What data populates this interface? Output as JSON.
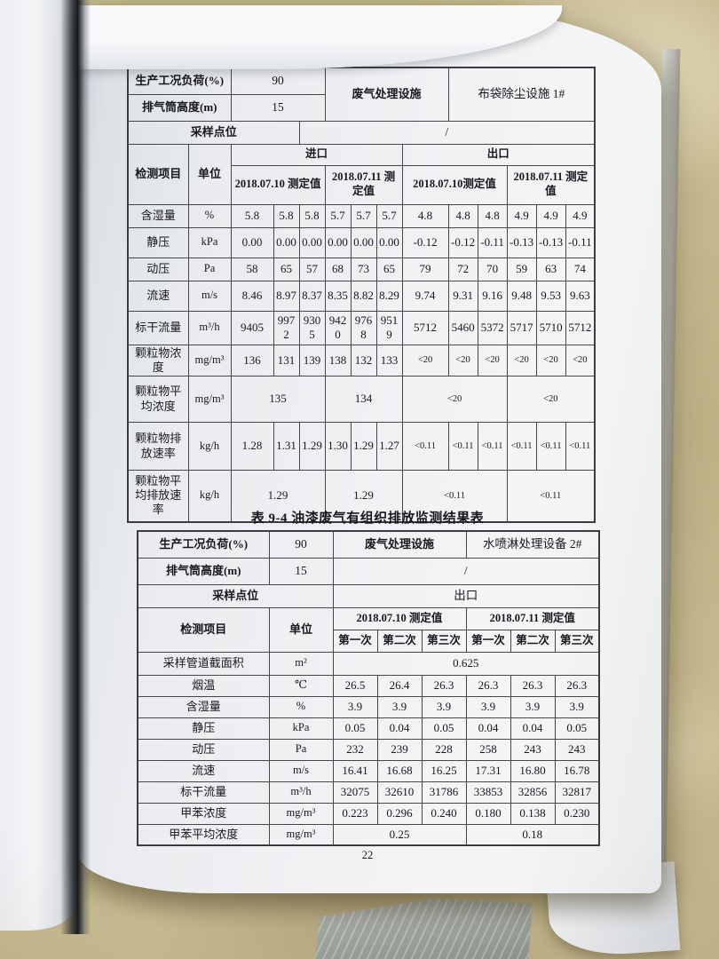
{
  "page_number": "22",
  "table1": {
    "info": {
      "load_label": "生产工况负荷(%)",
      "load_value": "90",
      "facility_label": "废气处理设施",
      "facility_value": "布袋除尘设施 1#",
      "stack_label": "排气筒高度(m)",
      "stack_value": "15",
      "sampling_label": "采样点位",
      "sampling_value": "/"
    },
    "header": {
      "item": "检测项目",
      "unit": "单位",
      "inlet": "进口",
      "outlet": "出口",
      "inlet_d1": "2018.07.10 测定值",
      "inlet_d2": "2018.07.11 测定值",
      "outlet_d1": "2018.07.10测定值",
      "outlet_d2": "2018.07.11 测定值"
    },
    "rows": [
      {
        "item": "含湿量",
        "unit": "%",
        "cells": [
          "5.8",
          "5.8",
          "5.8",
          "5.7",
          "5.7",
          "5.7",
          "4.8",
          "4.8",
          "4.8",
          "4.9",
          "4.9",
          "4.9"
        ]
      },
      {
        "item": "静压",
        "unit": "kPa",
        "cells": [
          "0.00",
          "0.00",
          "0.00",
          "0.00",
          "0.00",
          "0.00",
          "-0.12",
          "-0.12",
          "-0.11",
          "-0.13",
          "-0.13",
          "-0.11"
        ]
      },
      {
        "item": "动压",
        "unit": "Pa",
        "cells": [
          "58",
          "65",
          "57",
          "68",
          "73",
          "65",
          "79",
          "72",
          "70",
          "59",
          "63",
          "74"
        ]
      },
      {
        "item": "流速",
        "unit": "m/s",
        "cells": [
          "8.46",
          "8.97",
          "8.37",
          "8.35",
          "8.82",
          "8.29",
          "9.74",
          "9.31",
          "9.16",
          "9.48",
          "9.53",
          "9.63"
        ]
      },
      {
        "item": "标干流量",
        "unit": "m³/h",
        "cells": [
          "9405",
          "9972",
          "9305",
          "9420",
          "9768",
          "9519",
          "5712",
          "5460",
          "5372",
          "5717",
          "5710",
          "5712"
        ]
      },
      {
        "item": "颗粒物浓度",
        "unit": "mg/m³",
        "cells": [
          "136",
          "131",
          "139",
          "138",
          "132",
          "133",
          "<20",
          "<20",
          "<20",
          "<20",
          "<20",
          "<20"
        ]
      },
      {
        "item": "颗粒物平均浓度",
        "unit": "mg/m³",
        "merged": [
          "135",
          "134",
          "<20",
          "<20"
        ]
      },
      {
        "item": "颗粒物排放速率",
        "unit": "kg/h",
        "cells": [
          "1.28",
          "1.31",
          "1.29",
          "1.30",
          "1.29",
          "1.27",
          "<0.11",
          "<0.11",
          "<0.11",
          "<0.11",
          "<0.11",
          "<0.11"
        ]
      },
      {
        "item": "颗粒物平均排放速率",
        "unit": "kg/h",
        "merged": [
          "1.29",
          "1.29",
          "<0.11",
          "<0.11"
        ]
      }
    ]
  },
  "table2": {
    "title": "表 9-4  油漆废气有组织排放监测结果表",
    "info": {
      "load_label": "生产工况负荷(%)",
      "load_value": "90",
      "facility_label": "废气处理设施",
      "facility_value": "水喷淋处理设备 2#",
      "stack_label": "排气筒高度(m)",
      "stack_value": "15",
      "stack_right": "/",
      "sampling_label": "采样点位",
      "sampling_value": "出口"
    },
    "header": {
      "item": "检测项目",
      "unit": "单位",
      "d1": "2018.07.10 测定值",
      "d2": "2018.07.11 测定值",
      "runs": [
        "第一次",
        "第二次",
        "第三次",
        "第一次",
        "第二次",
        "第三次"
      ]
    },
    "rows": [
      {
        "item": "采样管道截面积",
        "unit": "m²",
        "merged": [
          "0.625"
        ]
      },
      {
        "item": "烟温",
        "unit": "℃",
        "cells": [
          "26.5",
          "26.4",
          "26.3",
          "26.3",
          "26.3",
          "26.3"
        ]
      },
      {
        "item": "含湿量",
        "unit": "%",
        "cells": [
          "3.9",
          "3.9",
          "3.9",
          "3.9",
          "3.9",
          "3.9"
        ]
      },
      {
        "item": "静压",
        "unit": "kPa",
        "cells": [
          "0.05",
          "0.04",
          "0.05",
          "0.04",
          "0.04",
          "0.05"
        ]
      },
      {
        "item": "动压",
        "unit": "Pa",
        "cells": [
          "232",
          "239",
          "228",
          "258",
          "243",
          "243"
        ]
      },
      {
        "item": "流速",
        "unit": "m/s",
        "cells": [
          "16.41",
          "16.68",
          "16.25",
          "17.31",
          "16.80",
          "16.78"
        ]
      },
      {
        "item": "标干流量",
        "unit": "m³/h",
        "cells": [
          "32075",
          "32610",
          "31786",
          "33853",
          "32856",
          "32817"
        ]
      },
      {
        "item": "甲苯浓度",
        "unit": "mg/m³",
        "cells": [
          "0.223",
          "0.296",
          "0.240",
          "0.180",
          "0.138",
          "0.230"
        ]
      },
      {
        "item": "甲苯平均浓度",
        "unit": "mg/m³",
        "merged": [
          "0.25",
          "0.18"
        ]
      }
    ]
  }
}
